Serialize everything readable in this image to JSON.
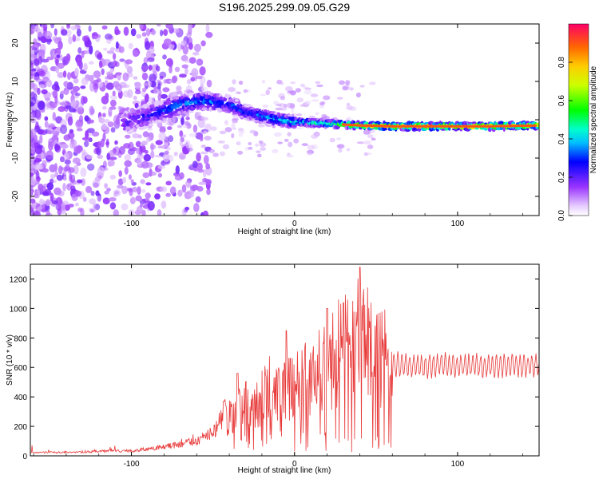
{
  "title": "S196.2025.299.09.05.G29",
  "chart_data": [
    {
      "type": "heatmap",
      "name": "spectrogram",
      "xlabel": "Height of straight line (km)",
      "ylabel": "Frequency (Hz)",
      "xlim": [
        -162,
        150
      ],
      "ylim": [
        -25,
        25
      ],
      "xticks": [
        -100,
        0,
        100
      ],
      "xtick_labels": [
        "-100",
        "0",
        "100"
      ],
      "yticks": [
        -20,
        -10,
        0,
        10,
        20
      ],
      "ytick_labels": [
        "-20",
        "-10",
        "0",
        "10",
        "20"
      ],
      "colorbar": {
        "label": "Normalized spectral amplitude",
        "range": [
          0,
          1
        ],
        "ticks": [
          0.0,
          0.2,
          0.4,
          0.6,
          0.8
        ],
        "tick_labels": [
          "0.0",
          "0.2",
          "0.4",
          "0.6",
          "0.8"
        ]
      },
      "ridge": {
        "x": [
          -105,
          -90,
          -70,
          -55,
          -40,
          -30,
          -20,
          -10,
          0,
          20,
          40,
          60,
          80,
          100,
          120,
          150
        ],
        "freq_hz": [
          -1,
          1,
          4,
          5,
          4,
          2,
          1,
          0,
          -0.5,
          -1,
          -1.5,
          -1.7,
          -1.7,
          -1.7,
          -1.7,
          -1.5
        ],
        "amplitude": [
          0.2,
          0.25,
          0.35,
          0.35,
          0.3,
          0.3,
          0.35,
          0.4,
          0.45,
          0.5,
          0.75,
          0.85,
          0.85,
          0.85,
          0.85,
          0.8
        ]
      }
    },
    {
      "type": "line",
      "name": "snr",
      "xlabel": "Height of straight line (km)",
      "ylabel": "SNR (10 * v/v)",
      "xlim": [
        -162,
        150
      ],
      "ylim": [
        0,
        1300
      ],
      "xticks": [
        -100,
        0,
        100
      ],
      "xtick_labels": [
        "-100",
        "0",
        "100"
      ],
      "yticks": [
        0,
        200,
        400,
        600,
        800,
        1000,
        1200
      ],
      "ytick_labels": [
        "0",
        "200",
        "400",
        "600",
        "800",
        "1000",
        "1200"
      ],
      "series": [
        {
          "name": "SNR",
          "color": "#ff0000",
          "x": [
            -162,
            -140,
            -120,
            -100,
            -90,
            -80,
            -70,
            -60,
            -50,
            -45,
            -40,
            -35,
            -30,
            -25,
            -20,
            -15,
            -10,
            -5,
            0,
            5,
            10,
            15,
            20,
            25,
            30,
            35,
            40,
            45,
            50,
            55,
            60,
            65,
            70,
            80,
            90,
            100,
            110,
            120,
            130,
            140,
            150
          ],
          "y": [
            20,
            25,
            30,
            35,
            45,
            60,
            80,
            100,
            160,
            240,
            300,
            330,
            380,
            360,
            420,
            500,
            450,
            520,
            480,
            560,
            520,
            600,
            650,
            700,
            800,
            760,
            900,
            860,
            700,
            720,
            620,
            620,
            610,
            610,
            615,
            610,
            615,
            610,
            615,
            610,
            620
          ],
          "peaks": [
            {
              "x": 40,
              "y": 1280
            },
            {
              "x": 20,
              "y": 1000
            },
            {
              "x": 30,
              "y": 1040
            },
            {
              "x": -5,
              "y": 850
            },
            {
              "x": -35,
              "y": 560
            }
          ]
        }
      ]
    }
  ]
}
